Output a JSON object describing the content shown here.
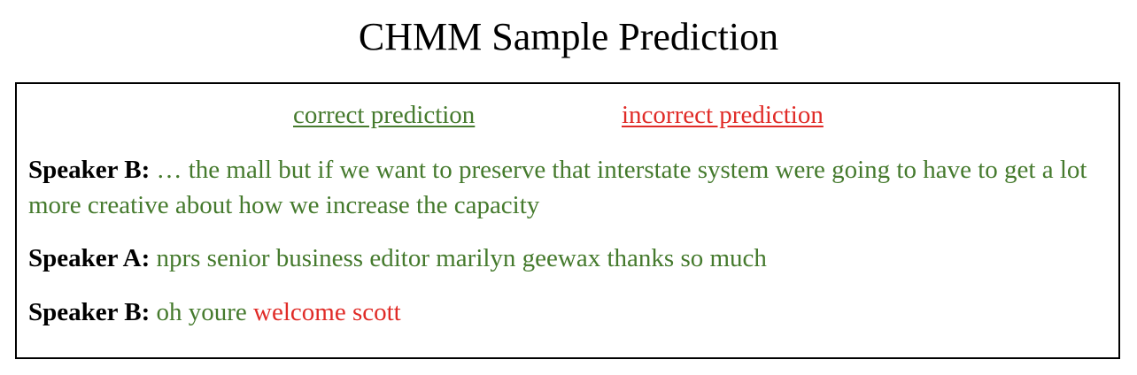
{
  "title": "CHMM Sample Prediction",
  "colors": {
    "correct": "#457a2d",
    "incorrect": "#e02b27",
    "border": "#000000"
  },
  "legend": {
    "correct_label": "correct prediction",
    "incorrect_label": "incorrect prediction"
  },
  "turns": [
    {
      "speaker": "Speaker B:",
      "correct_text": "… the mall but if we want to preserve that interstate system were going to have to get a lot more creative about how we increase the capacity",
      "incorrect_text": ""
    },
    {
      "speaker": "Speaker A:",
      "correct_text": "nprs senior business editor marilyn geewax thanks so much",
      "incorrect_text": ""
    },
    {
      "speaker": "Speaker B:",
      "correct_text": "oh youre",
      "incorrect_text": "welcome scott"
    }
  ]
}
